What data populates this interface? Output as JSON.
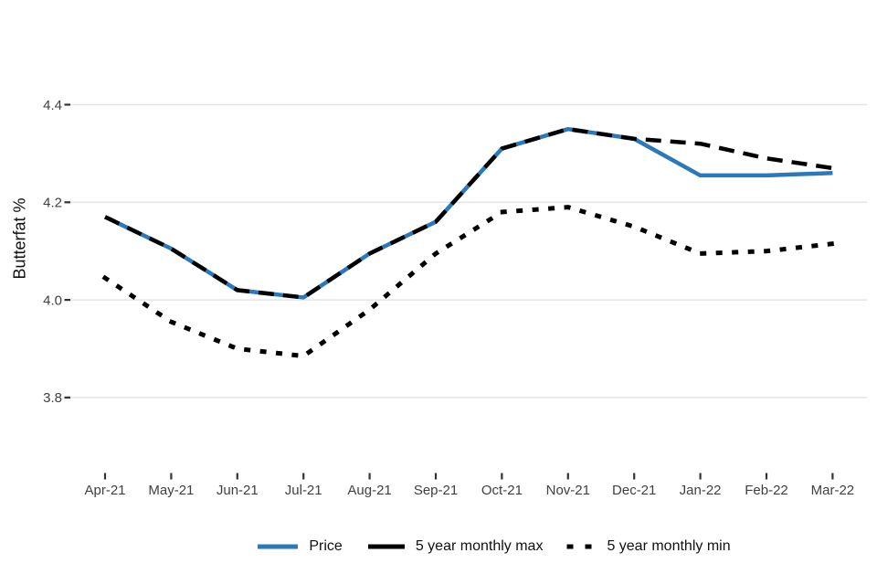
{
  "chart_data": {
    "type": "line",
    "title": "",
    "xlabel": "",
    "ylabel": "Butterfat %",
    "grid": true,
    "legend_position": "bottom",
    "categories": [
      "Apr-21",
      "May-21",
      "Jun-21",
      "Jul-21",
      "Aug-21",
      "Sep-21",
      "Oct-21",
      "Nov-21",
      "Dec-21",
      "Jan-22",
      "Feb-22",
      "Mar-22"
    ],
    "y_axis": {
      "ticks": [
        {
          "label": "4.4",
          "value": 4.4
        },
        {
          "label": "4.2",
          "value": 4.2
        },
        {
          "label": "4.0",
          "value": 4.0
        },
        {
          "label": "3.8",
          "value": 3.8
        }
      ]
    },
    "colors": {
      "price_blue": "#2b78ba",
      "black": "#000000",
      "gridline": "#e4e4e4",
      "tick_mark": "#333333",
      "tick_label": "#404040"
    },
    "series": [
      {
        "name": "Price",
        "style": "solid",
        "color": "#2b78ba",
        "values": [
          4.17,
          4.105,
          4.02,
          4.005,
          4.095,
          4.16,
          4.31,
          4.35,
          4.33,
          4.255,
          4.255,
          4.26
        ]
      },
      {
        "name": "5 year monthly max",
        "style": "dashed",
        "color": "#000000",
        "values": [
          4.17,
          4.105,
          4.02,
          4.005,
          4.095,
          4.16,
          4.31,
          4.35,
          4.33,
          4.32,
          4.29,
          4.27
        ]
      },
      {
        "name": "5 year monthly min",
        "style": "dotted",
        "color": "#000000",
        "values": [
          4.045,
          3.955,
          3.9,
          3.885,
          3.98,
          4.095,
          4.18,
          4.19,
          4.15,
          4.095,
          4.1,
          4.115
        ]
      }
    ]
  }
}
